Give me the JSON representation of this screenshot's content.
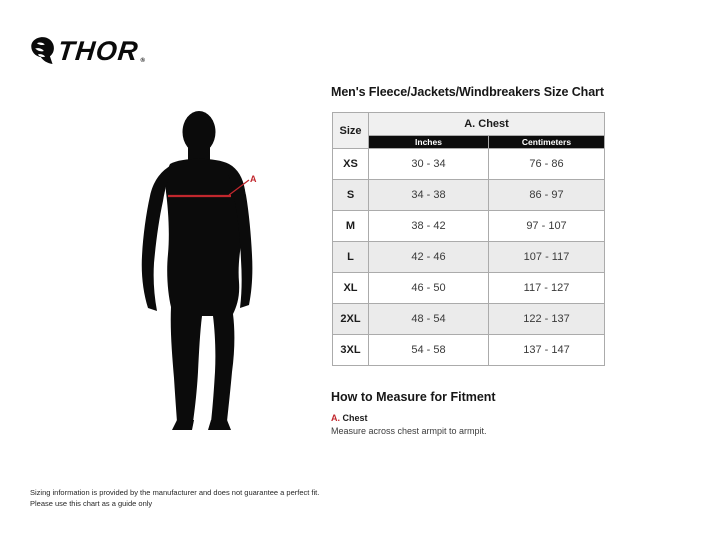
{
  "brand": {
    "name": "THOR",
    "registered": "®"
  },
  "page_title": "Men's Fleece/Jackets/Windbreakers Size Chart",
  "diagram": {
    "marker_label": "A"
  },
  "size_table": {
    "corner_header": "Size",
    "group_header": "A. Chest",
    "unit_headers": [
      "Inches",
      "Centimeters"
    ],
    "rows": [
      {
        "size": "XS",
        "inches": "30 - 34",
        "cm": "76 - 86"
      },
      {
        "size": "S",
        "inches": "34 - 38",
        "cm": "86 - 97"
      },
      {
        "size": "M",
        "inches": "38 - 42",
        "cm": "97 - 107"
      },
      {
        "size": "L",
        "inches": "42 - 46",
        "cm": "107 - 117"
      },
      {
        "size": "XL",
        "inches": "46 - 50",
        "cm": "117 - 127"
      },
      {
        "size": "2XL",
        "inches": "48 - 54",
        "cm": "122 - 137"
      },
      {
        "size": "3XL",
        "inches": "54 - 58",
        "cm": "137 - 147"
      }
    ]
  },
  "how_to_measure": {
    "heading": "How to Measure for Fitment",
    "marker_key": "A.",
    "marker_name": "Chest",
    "instruction": "Measure across chest armpit to armpit."
  },
  "disclaimer": {
    "line1": "Sizing information is provided by the manufacturer and does not guarantee a perfect fit.",
    "line2": "Please use this chart as a guide only"
  },
  "colors": {
    "accent_red": "#c1272d",
    "table_header_bg": "#f0f0f0",
    "table_black_bar": "#0d0d0d",
    "row_alt_bg": "#ebebeb"
  }
}
